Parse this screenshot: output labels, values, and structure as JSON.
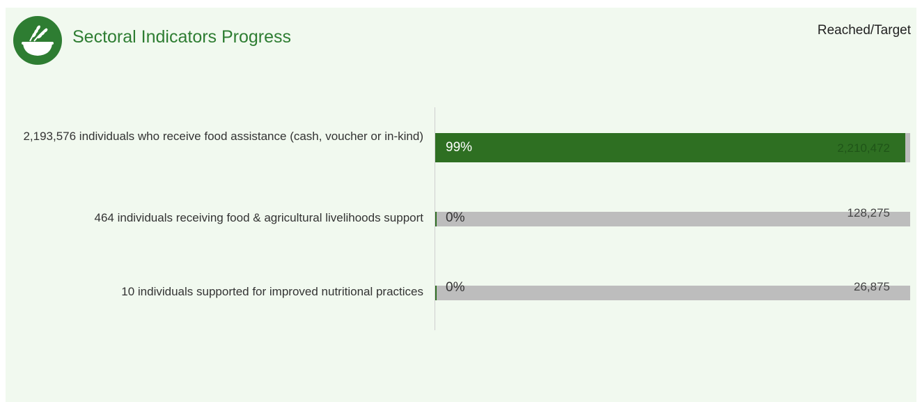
{
  "header": {
    "title": "Sectoral Indicators Progress",
    "legend_label": "Reached/Target",
    "logo_icon": "wheat-bowl-icon"
  },
  "colors": {
    "background": "#f1f9ef",
    "accent": "#2e7d32",
    "bar_fill": "#2e6f22",
    "bar_track": "#bdbdbd"
  },
  "chart_data": {
    "type": "bar",
    "orientation": "horizontal",
    "title": "Sectoral Indicators Progress",
    "legend": "Reached/Target",
    "rows": [
      {
        "label": "2,193,576 individuals who receive food assistance (cash, voucher or in-kind)",
        "reached": 2193576,
        "target": 2210472,
        "target_label": "2,210,472",
        "percent_label": "99%",
        "progress": 0.99
      },
      {
        "label": "464 individuals receiving food & agricultural livelihoods support",
        "reached": 464,
        "target": 128275,
        "target_label": "128,275",
        "percent_label": "0%",
        "progress": 0.0036
      },
      {
        "label": "10 individuals supported for improved nutritional practices",
        "reached": 10,
        "target": 26875,
        "target_label": "26,875",
        "percent_label": "0%",
        "progress": 0.0004
      }
    ]
  }
}
